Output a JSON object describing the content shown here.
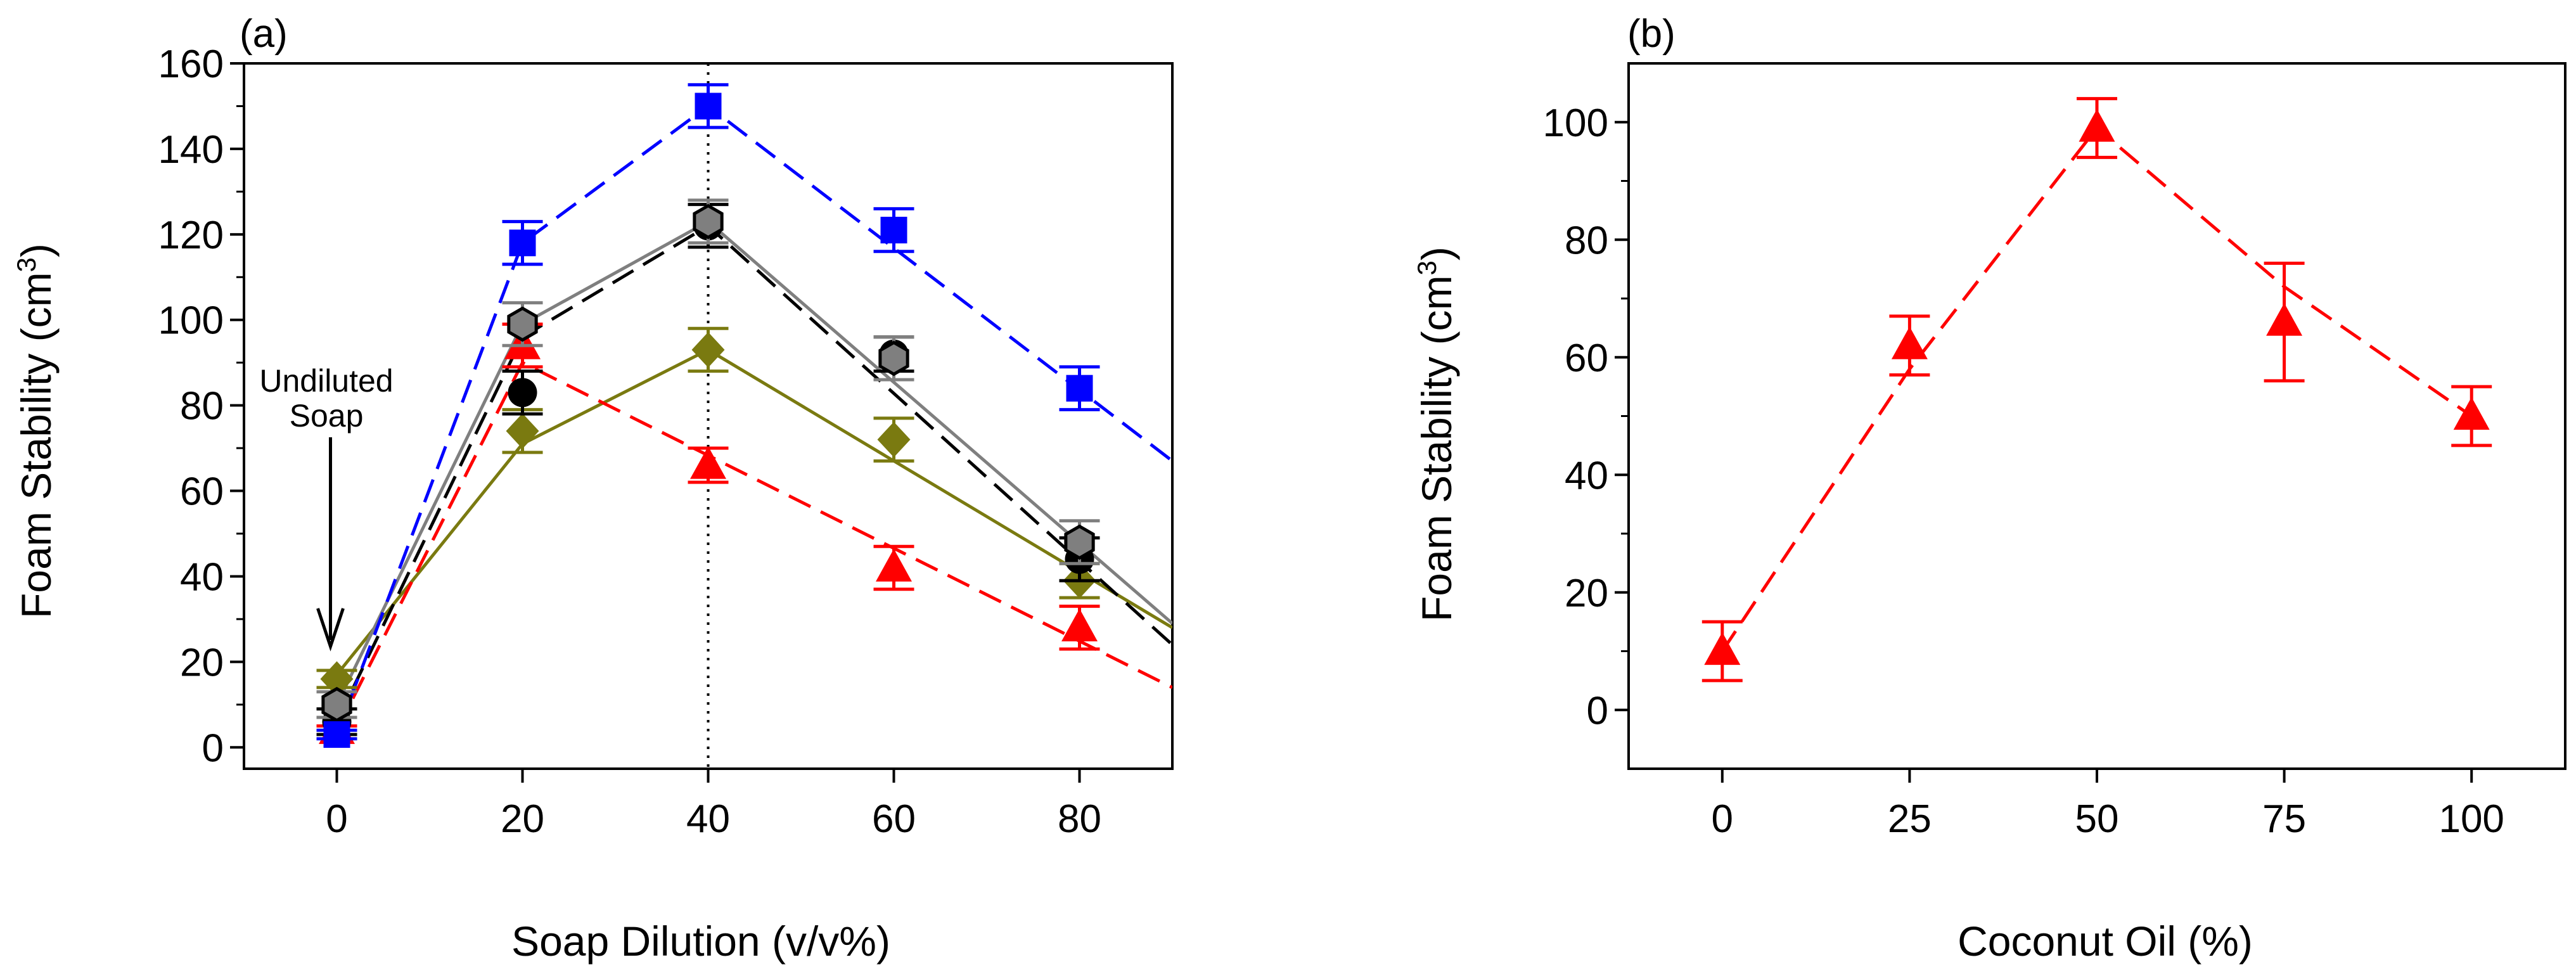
{
  "chart_data": [
    {
      "id": "a",
      "type": "scatter",
      "panel_label": "(a)",
      "xlabel": "Soap Dilution (v/v%)",
      "ylabel_main": "Foam Stability (cm",
      "ylabel_sup": "3",
      "ylabel_close": ")",
      "xlim": [
        -10,
        90
      ],
      "ylim": [
        -5,
        160
      ],
      "xticks": [
        0,
        20,
        40,
        60,
        80
      ],
      "yticks": [
        0,
        20,
        40,
        60,
        80,
        100,
        120,
        140,
        160
      ],
      "reference_line_x": 40,
      "annotation_line1": "Undiluted",
      "annotation_line2": "Soap",
      "series": [
        {
          "name": "olive diamond",
          "color": "#7a7a10",
          "marker": "diamond",
          "line": "solid",
          "x": [
            0,
            20,
            40,
            60,
            80
          ],
          "y": [
            16,
            74,
            93,
            72,
            39
          ],
          "err": [
            2,
            5,
            5,
            5,
            4
          ],
          "fit_x": [
            0,
            20,
            40,
            90
          ],
          "fit_y": [
            17,
            71,
            93,
            28
          ]
        },
        {
          "name": "red triangle",
          "color": "#ff0000",
          "marker": "triangle",
          "line": "dashed",
          "x": [
            0,
            20,
            40,
            60,
            80
          ],
          "y": [
            4,
            94,
            66,
            42,
            28
          ],
          "err": [
            1,
            5,
            4,
            5,
            5
          ],
          "fit_x": [
            0,
            20,
            90
          ],
          "fit_y": [
            4,
            90,
            14
          ]
        },
        {
          "name": "black circle",
          "color": "#000000",
          "marker": "circle",
          "line": "dashed",
          "x": [
            0,
            20,
            40,
            60,
            80
          ],
          "y": [
            6,
            83,
            122,
            92,
            44
          ],
          "err": [
            3,
            5,
            5,
            4,
            5
          ],
          "fit_x": [
            0,
            20,
            40,
            90
          ],
          "fit_y": [
            6,
            96,
            122,
            24
          ]
        },
        {
          "name": "grey hexagon",
          "color": "#7f7f7f",
          "marker": "hexagon",
          "line": "solid",
          "x": [
            0,
            20,
            40,
            60,
            80
          ],
          "y": [
            10,
            99,
            123,
            91,
            48
          ],
          "err": [
            3,
            5,
            5,
            5,
            5
          ],
          "fit_x": [
            0,
            20,
            40,
            90
          ],
          "fit_y": [
            10,
            99,
            123,
            29
          ]
        },
        {
          "name": "blue square",
          "color": "#0000ff",
          "marker": "square",
          "line": "dashed",
          "x": [
            0,
            20,
            40,
            60,
            80
          ],
          "y": [
            3,
            118,
            150,
            121,
            84
          ],
          "err": [
            1,
            5,
            5,
            5,
            5
          ],
          "fit_x": [
            0,
            20,
            40,
            90
          ],
          "fit_y": [
            3,
            118,
            150,
            67
          ]
        }
      ]
    },
    {
      "id": "b",
      "type": "scatter",
      "panel_label": "(b)",
      "xlabel": "Coconut Oil (%)",
      "ylabel_main": "Foam Stability (cm",
      "ylabel_sup": "3",
      "ylabel_close": ")",
      "xlim": [
        -12.5,
        112.5
      ],
      "ylim": [
        -10,
        110
      ],
      "xticks": [
        0,
        25,
        50,
        75,
        100
      ],
      "yticks": [
        0,
        20,
        40,
        60,
        80,
        100
      ],
      "series": [
        {
          "name": "red triangle",
          "color": "#ff0000",
          "marker": "triangle",
          "line": "dashed",
          "x": [
            0,
            25,
            50,
            75,
            100
          ],
          "y": [
            10,
            62,
            99,
            66,
            50
          ],
          "err": [
            5,
            5,
            5,
            10,
            5
          ],
          "fit_x": [
            0,
            25,
            50,
            75,
            100
          ],
          "fit_y": [
            10,
            58,
            99,
            72,
            50
          ]
        }
      ]
    }
  ]
}
